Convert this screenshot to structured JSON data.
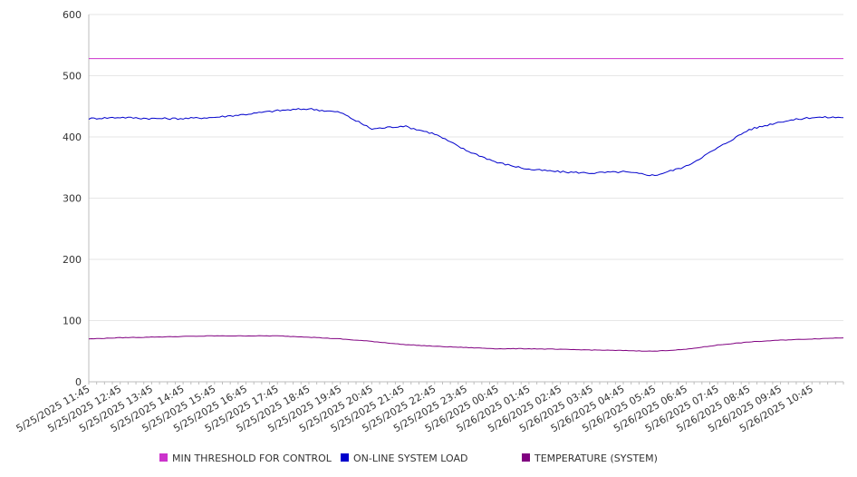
{
  "chart_data": {
    "type": "line",
    "title": "",
    "xlabel": "",
    "ylabel": "",
    "ylim": [
      0,
      600
    ],
    "yticks": [
      0,
      100,
      200,
      300,
      400,
      500,
      600
    ],
    "grid": true,
    "legend": "bottom",
    "x_tick_labels": [
      "5/25/2025 11:45",
      "5/25/2025 12:45",
      "5/25/2025 13:45",
      "5/25/2025 14:45",
      "5/25/2025 15:45",
      "5/25/2025 16:45",
      "5/25/2025 17:45",
      "5/25/2025 18:45",
      "5/25/2025 19:45",
      "5/25/2025 20:45",
      "5/25/2025 21:45",
      "5/25/2025 22:45",
      "5/25/2025 23:45",
      "5/26/2025 00:45",
      "5/26/2025 01:45",
      "5/26/2025 02:45",
      "5/26/2025 03:45",
      "5/26/2025 04:45",
      "5/26/2025 05:45",
      "5/26/2025 06:45",
      "5/26/2025 07:45",
      "5/26/2025 08:45",
      "5/26/2025 09:45",
      "5/26/2025 10:45"
    ],
    "x": [
      "5/25/2025 11:45",
      "5/25/2025 12:45",
      "5/25/2025 13:45",
      "5/25/2025 14:45",
      "5/25/2025 15:45",
      "5/25/2025 16:45",
      "5/25/2025 17:45",
      "5/25/2025 18:45",
      "5/25/2025 19:45",
      "5/25/2025 20:45",
      "5/25/2025 21:45",
      "5/25/2025 22:45",
      "5/25/2025 23:45",
      "5/26/2025 00:45",
      "5/26/2025 01:45",
      "5/26/2025 02:45",
      "5/26/2025 03:45",
      "5/26/2025 04:45",
      "5/26/2025 05:45",
      "5/26/2025 06:45",
      "5/26/2025 07:45",
      "5/26/2025 08:45",
      "5/26/2025 09:45",
      "5/26/2025 10:45",
      "5/26/2025 11:45"
    ],
    "series": [
      {
        "name": "MIN THRESHOLD FOR CONTROL",
        "color": "#cc33cc",
        "values": [
          528,
          528,
          528,
          528,
          528,
          528,
          528,
          528,
          528,
          528,
          528,
          528,
          528,
          528,
          528,
          528,
          528,
          528,
          528,
          528,
          528,
          528,
          528,
          528,
          528
        ]
      },
      {
        "name": "ON-LINE SYSTEM LOAD",
        "color": "#0000cc",
        "values": [
          430,
          432,
          430,
          430,
          432,
          437,
          443,
          446,
          440,
          413,
          418,
          405,
          378,
          358,
          347,
          343,
          341,
          343,
          337,
          352,
          382,
          412,
          425,
          432,
          432
        ]
      },
      {
        "name": "TEMPERATURE (SYSTEM)",
        "color": "#800080",
        "values": [
          70,
          72,
          73,
          74,
          75,
          75,
          75,
          73,
          70,
          66,
          61,
          58,
          56,
          54,
          54,
          53,
          52,
          51,
          50,
          53,
          60,
          65,
          68,
          70,
          72
        ]
      }
    ]
  }
}
